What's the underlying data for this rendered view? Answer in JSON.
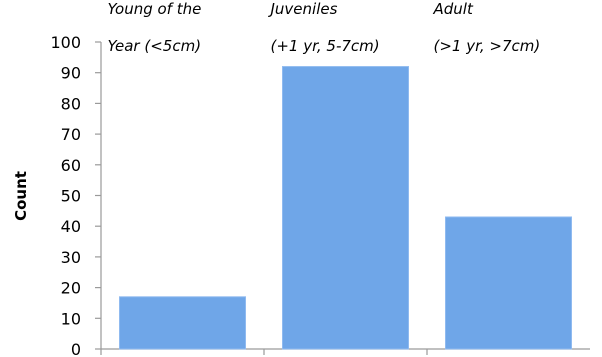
{
  "chart_data": {
    "type": "bar",
    "categories": [
      [
        "Young of the",
        "Year (<5cm)"
      ],
      [
        "Juveniles",
        "(+1 yr, 5-7cm)"
      ],
      [
        "Adult",
        "(>1 yr, >7cm)"
      ]
    ],
    "values": [
      17,
      92,
      43
    ],
    "title": "",
    "xlabel": "",
    "ylabel": "Count",
    "ylim": [
      0,
      100
    ],
    "yticks": [
      0,
      10,
      20,
      30,
      40,
      50,
      60,
      70,
      80,
      90,
      100
    ],
    "grid": false,
    "bar_color": "#6fa6e8",
    "bar_edge_color": "#8fbaf0",
    "axis_color": "#9a9a9a"
  }
}
